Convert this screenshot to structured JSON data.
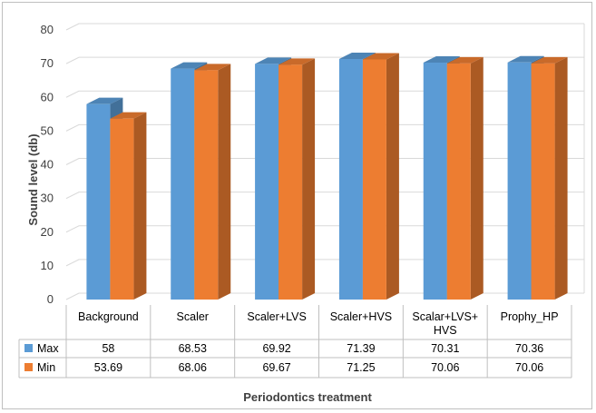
{
  "chart_data": {
    "type": "bar",
    "variant": "3d-clustered-column-with-data-table",
    "categories": [
      "Background",
      "Scaler",
      "Scaler+LVS",
      "Scaler+HVS",
      "Scalar+LVS+ HVS",
      "Prophy_HP"
    ],
    "series": [
      {
        "name": "Max",
        "color": "#5b9bd5",
        "values": [
          58,
          68.53,
          69.92,
          71.39,
          70.31,
          70.36
        ]
      },
      {
        "name": "Min",
        "color": "#ed7d31",
        "values": [
          53.69,
          68.06,
          69.67,
          71.25,
          70.06,
          70.06
        ]
      }
    ],
    "value_labels": {
      "Max": [
        "58",
        "68.53",
        "69.92",
        "71.39",
        "70.31",
        "70.36"
      ],
      "Min": [
        "53.69",
        "68.06",
        "69.67",
        "71.25",
        "70.06",
        "70.06"
      ]
    },
    "ylabel": "Sound level (db)",
    "xlabel": "Periodontics treatment",
    "ylim": [
      0,
      80
    ],
    "yticks": [
      "0",
      "10",
      "20",
      "30",
      "40",
      "50",
      "60",
      "70",
      "80"
    ],
    "grid": true,
    "legend": "data-table"
  }
}
